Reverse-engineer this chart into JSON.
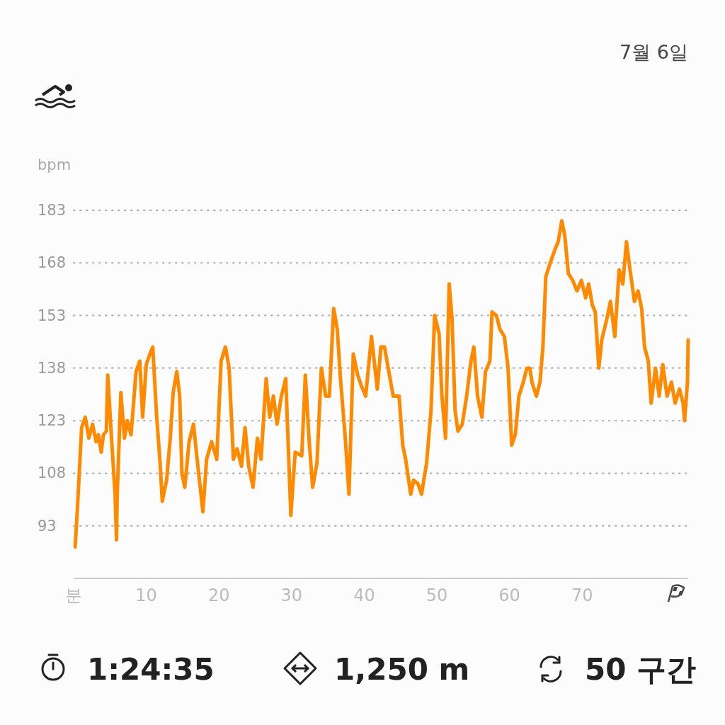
{
  "chart_data": {
    "type": "line",
    "title": "7월 6일",
    "ylabel": "bpm",
    "color": "#ff8a00",
    "grid": "y",
    "marker": "none",
    "line_style": "solid",
    "xlim": [
      0,
      84.6
    ],
    "ylim": [
      78,
      183
    ],
    "xticks": [
      {
        "value": 0,
        "label": "분"
      },
      10,
      20,
      30,
      40,
      50,
      60,
      70
    ],
    "yticks": [
      93,
      108,
      123,
      138,
      153,
      168,
      183
    ],
    "annotations": [
      "1:24:35",
      "1,250 m",
      "50 구간"
    ],
    "x": [
      0.2,
      0.5,
      1.1,
      1.6,
      2.1,
      2.6,
      3.1,
      3.4,
      3.8,
      4.1,
      4.5,
      4.7,
      5.1,
      5.7,
      5.9,
      6.0,
      6.5,
      7.0,
      7.4,
      7.9,
      8.6,
      9.1,
      9.5,
      10.0,
      10.5,
      10.9,
      11.4,
      11.9,
      12.2,
      12.8,
      13.3,
      13.7,
      14.2,
      14.6,
      14.9,
      15.3,
      15.9,
      16.5,
      17.0,
      17.8,
      18.3,
      19.0,
      19.7,
      20.3,
      20.9,
      21.4,
      22.0,
      22.5,
      23.1,
      23.6,
      24.1,
      24.7,
      25.3,
      25.8,
      26.5,
      27.0,
      27.5,
      28.0,
      28.6,
      29.2,
      29.9,
      30.5,
      31.4,
      31.9,
      32.4,
      32.9,
      33.5,
      34.1,
      34.7,
      35.2,
      35.8,
      36.3,
      36.7,
      37.4,
      37.9,
      38.5,
      39.1,
      39.6,
      40.2,
      41.0,
      41.8,
      42.3,
      42.8,
      43.3,
      44.0,
      44.8,
      45.3,
      45.7,
      46.4,
      46.8,
      47.4,
      47.9,
      48.2,
      48.6,
      49.2,
      49.7,
      50.3,
      50.7,
      51.2,
      51.7,
      52.1,
      52.5,
      52.9,
      53.5,
      54.1,
      54.7,
      55.1,
      55.6,
      56.2,
      56.7,
      57.3,
      57.6,
      58.2,
      58.7,
      59.3,
      59.8,
      60.3,
      60.8,
      61.3,
      61.9,
      62.4,
      62.8,
      63.1,
      63.7,
      64.2,
      64.6,
      65.0,
      65.6,
      66.3,
      66.7,
      67.2,
      67.6,
      68.1,
      68.7,
      69.3,
      69.9,
      70.5,
      70.9,
      71.4,
      71.8,
      72.3,
      72.7,
      73.4,
      73.9,
      74.5,
      75.1,
      75.6,
      76.1,
      76.6,
      77.2,
      77.7,
      78.2,
      78.6,
      79.1,
      79.5,
      80.1,
      80.6,
      81.1,
      81.7,
      82.3,
      82.8,
      83.4,
      83.9,
      84.1,
      84.5,
      84.6
    ],
    "values": [
      87,
      97,
      121,
      124,
      118,
      122,
      117,
      119,
      114,
      119,
      120,
      136,
      122,
      102,
      89,
      102,
      131,
      118,
      123,
      119,
      137,
      140,
      124,
      139,
      142,
      144,
      125,
      111,
      100,
      106,
      118,
      131,
      137,
      130,
      108,
      104,
      117,
      122,
      112,
      97,
      112,
      117,
      112,
      140,
      144,
      138,
      112,
      115,
      110,
      121,
      110,
      104,
      118,
      112,
      135,
      124,
      130,
      122,
      130,
      135,
      96,
      114,
      113,
      136,
      118,
      104,
      111,
      138,
      130,
      130,
      155,
      149,
      136,
      118,
      102,
      142,
      136,
      133,
      130,
      147,
      132,
      144,
      144,
      138,
      130,
      130,
      116,
      112,
      102,
      106,
      105,
      102,
      106,
      111,
      126,
      153,
      148,
      130,
      118,
      162,
      152,
      126,
      120,
      122,
      130,
      140,
      144,
      130,
      124,
      137,
      140,
      154,
      153,
      149,
      147,
      138,
      116,
      119,
      130,
      134,
      138,
      138,
      134,
      130,
      134,
      144,
      164,
      168,
      172,
      174,
      180,
      176,
      165,
      163,
      160,
      163,
      158,
      162,
      156,
      154,
      138,
      146,
      152,
      157,
      147,
      166,
      162,
      174,
      166,
      157,
      160,
      155,
      144,
      140,
      128,
      138,
      130,
      139,
      130,
      134,
      128,
      132,
      128,
      123,
      134,
      146
    ]
  }
}
